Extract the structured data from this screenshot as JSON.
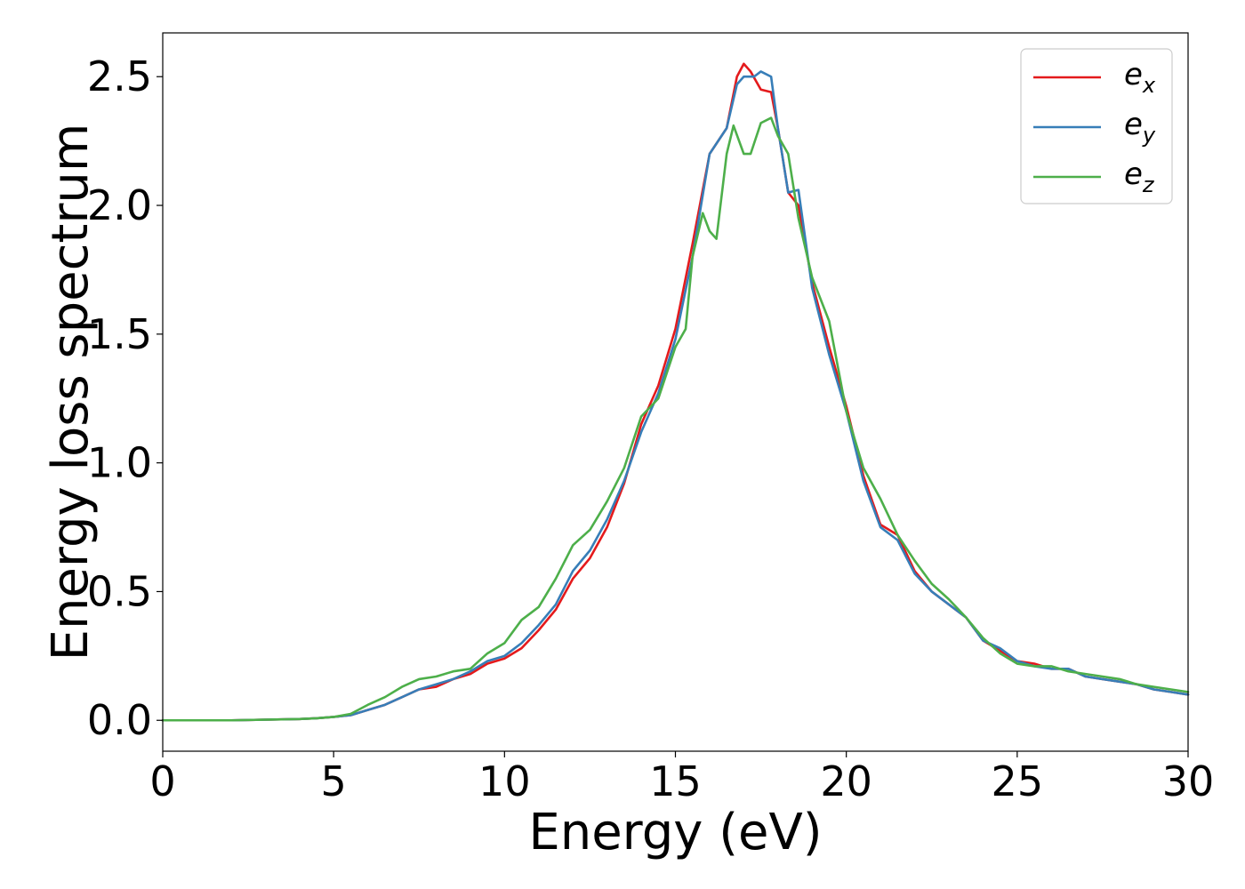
{
  "chart_data": {
    "type": "line",
    "title": "",
    "xlabel": "Energy (eV)",
    "ylabel": "Energy loss spectrum",
    "xlim": [
      0,
      30
    ],
    "ylim": [
      -0.12,
      2.67
    ],
    "xticks": [
      0,
      5,
      10,
      15,
      20,
      25,
      30
    ],
    "xtick_labels": [
      "0",
      "5",
      "10",
      "15",
      "20",
      "25",
      "30"
    ],
    "yticks": [
      0.0,
      0.5,
      1.0,
      1.5,
      2.0,
      2.5
    ],
    "ytick_labels": [
      "0.0",
      "0.5",
      "1.0",
      "1.5",
      "2.0",
      "2.5"
    ],
    "grid": false,
    "legend_position": "top-right",
    "series": [
      {
        "name": "e_x",
        "legend_base": "e",
        "legend_sub": "x",
        "color": "#e41a1c",
        "x": [
          0,
          2,
          4,
          4.5,
          5,
          5.5,
          6,
          6.5,
          7,
          7.5,
          8,
          8.5,
          9,
          9.5,
          10,
          10.5,
          11,
          11.5,
          12,
          12.5,
          13,
          13.5,
          14,
          14.5,
          15,
          15.5,
          16,
          16.5,
          16.8,
          17.0,
          17.2,
          17.5,
          17.8,
          18.0,
          18.3,
          18.6,
          19.0,
          19.5,
          20.0,
          20.5,
          21.0,
          21.5,
          22.0,
          22.5,
          23.0,
          23.5,
          24.0,
          24.5,
          25.0,
          25.5,
          26.0,
          26.5,
          27.0,
          27.5,
          28.0,
          28.5,
          29.0,
          29.5,
          30.0
        ],
        "y": [
          0.0,
          0.0,
          0.005,
          0.008,
          0.013,
          0.02,
          0.04,
          0.06,
          0.09,
          0.12,
          0.13,
          0.16,
          0.18,
          0.22,
          0.24,
          0.28,
          0.35,
          0.43,
          0.55,
          0.63,
          0.75,
          0.92,
          1.15,
          1.3,
          1.52,
          1.85,
          2.2,
          2.3,
          2.5,
          2.55,
          2.52,
          2.45,
          2.44,
          2.3,
          2.05,
          2.0,
          1.7,
          1.45,
          1.22,
          0.95,
          0.76,
          0.72,
          0.58,
          0.5,
          0.45,
          0.4,
          0.31,
          0.27,
          0.23,
          0.22,
          0.2,
          0.2,
          0.17,
          0.16,
          0.15,
          0.14,
          0.12,
          0.11,
          0.1
        ]
      },
      {
        "name": "e_y",
        "legend_base": "e",
        "legend_sub": "y",
        "color": "#377eb8",
        "x": [
          0,
          2,
          4,
          4.5,
          5,
          5.5,
          6,
          6.5,
          7,
          7.5,
          8,
          8.5,
          9,
          9.5,
          10,
          10.5,
          11,
          11.5,
          12,
          12.5,
          13,
          13.5,
          14,
          14.5,
          15,
          15.5,
          16,
          16.5,
          16.8,
          17.0,
          17.3,
          17.5,
          17.8,
          18.0,
          18.3,
          18.6,
          19.0,
          19.5,
          20.0,
          20.5,
          21.0,
          21.5,
          22.0,
          22.5,
          23.0,
          23.5,
          24.0,
          24.5,
          25.0,
          25.5,
          26.0,
          26.5,
          27.0,
          27.5,
          28.0,
          28.5,
          29.0,
          29.5,
          30.0
        ],
        "y": [
          0.0,
          0.0,
          0.005,
          0.008,
          0.013,
          0.02,
          0.04,
          0.06,
          0.09,
          0.12,
          0.14,
          0.16,
          0.19,
          0.23,
          0.25,
          0.3,
          0.37,
          0.45,
          0.58,
          0.66,
          0.78,
          0.93,
          1.12,
          1.27,
          1.48,
          1.8,
          2.2,
          2.3,
          2.47,
          2.5,
          2.5,
          2.52,
          2.5,
          2.3,
          2.05,
          2.06,
          1.68,
          1.42,
          1.2,
          0.93,
          0.75,
          0.7,
          0.57,
          0.5,
          0.45,
          0.4,
          0.31,
          0.28,
          0.23,
          0.21,
          0.2,
          0.2,
          0.17,
          0.16,
          0.15,
          0.14,
          0.12,
          0.11,
          0.1
        ]
      },
      {
        "name": "e_z",
        "legend_base": "e",
        "legend_sub": "z",
        "color": "#4daf4a",
        "x": [
          0,
          2,
          4,
          4.5,
          5,
          5.5,
          6,
          6.5,
          7,
          7.5,
          8,
          8.5,
          9,
          9.5,
          10,
          10.5,
          11,
          11.5,
          12,
          12.5,
          13,
          13.5,
          14,
          14.5,
          15,
          15.3,
          15.5,
          15.8,
          16.0,
          16.2,
          16.5,
          16.7,
          17.0,
          17.2,
          17.5,
          17.8,
          18.0,
          18.3,
          18.6,
          19.0,
          19.5,
          20.0,
          20.5,
          21.0,
          21.5,
          22.0,
          22.5,
          23.0,
          23.5,
          24.0,
          24.5,
          25.0,
          25.5,
          26.0,
          26.5,
          27.0,
          27.5,
          28.0,
          28.5,
          29.0,
          29.5,
          30.0
        ],
        "y": [
          0.0,
          0.0,
          0.005,
          0.008,
          0.013,
          0.025,
          0.06,
          0.09,
          0.13,
          0.16,
          0.17,
          0.19,
          0.2,
          0.26,
          0.3,
          0.39,
          0.44,
          0.55,
          0.68,
          0.74,
          0.85,
          0.98,
          1.18,
          1.25,
          1.45,
          1.52,
          1.8,
          1.97,
          1.9,
          1.87,
          2.2,
          2.31,
          2.2,
          2.2,
          2.32,
          2.34,
          2.27,
          2.2,
          1.95,
          1.72,
          1.55,
          1.2,
          0.98,
          0.86,
          0.72,
          0.62,
          0.53,
          0.47,
          0.4,
          0.32,
          0.26,
          0.22,
          0.21,
          0.21,
          0.19,
          0.18,
          0.17,
          0.16,
          0.14,
          0.13,
          0.12,
          0.11
        ]
      }
    ]
  }
}
